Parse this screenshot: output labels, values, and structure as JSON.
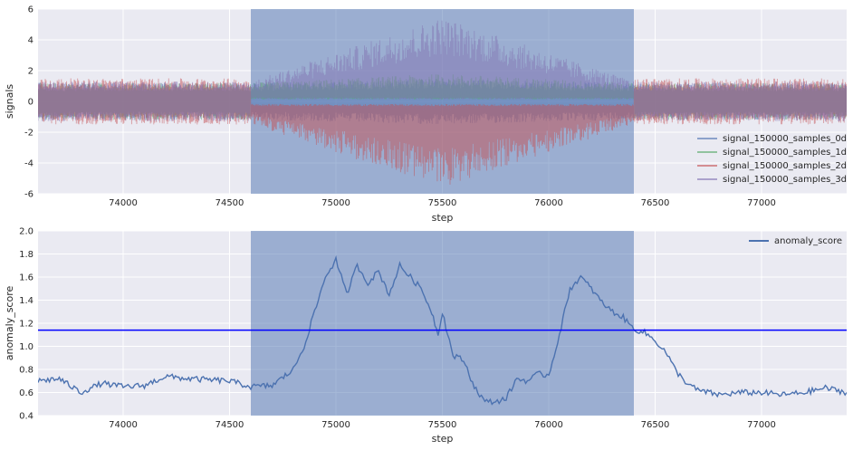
{
  "chart_data": [
    {
      "type": "line",
      "xlabel": "step",
      "ylabel": "signals",
      "xlim": [
        73600,
        77400
      ],
      "ylim": [
        -6,
        6
      ],
      "xticks": [
        74000,
        74500,
        75000,
        75500,
        76000,
        76500,
        77000
      ],
      "yticks": [
        -6,
        -4,
        -2,
        0,
        2,
        4,
        6
      ],
      "grid": true,
      "legend_position": "lower-right",
      "highlight_span": {
        "x": [
          74600,
          76400
        ],
        "color": "#4c72b0"
      },
      "series": [
        {
          "name": "signal_150000_samples_0d",
          "color": "#4c72b0",
          "base_amplitude": 1.2,
          "peak_amplitude": 1.5,
          "polarity": "both"
        },
        {
          "name": "signal_150000_samples_1d",
          "color": "#55a868",
          "base_amplitude": 1.2,
          "peak_amplitude": 1.8,
          "polarity": "positive"
        },
        {
          "name": "signal_150000_samples_2d",
          "color": "#c44e52",
          "base_amplitude": 1.5,
          "peak_amplitude": 5.6,
          "polarity": "negative"
        },
        {
          "name": "signal_150000_samples_3d",
          "color": "#8172b2",
          "base_amplitude": 1.3,
          "peak_amplitude": 5.5,
          "polarity": "positive"
        }
      ]
    },
    {
      "type": "line",
      "xlabel": "step",
      "ylabel": "anomaly_score",
      "xlim": [
        73600,
        77400
      ],
      "ylim": [
        0.4,
        2.0
      ],
      "xticks": [
        74000,
        74500,
        75000,
        75500,
        76000,
        76500,
        77000
      ],
      "yticks": [
        0.4,
        0.6,
        0.8,
        1.0,
        1.2,
        1.4,
        1.6,
        1.8,
        2.0
      ],
      "grid": true,
      "legend_position": "upper-right",
      "highlight_span": {
        "x": [
          74600,
          76400
        ],
        "color": "#4c72b0"
      },
      "threshold": {
        "y": 1.14,
        "color": "#0000ff"
      },
      "series": [
        {
          "name": "anomaly_score",
          "color": "#4c72b0",
          "x": [
            73600,
            73700,
            73800,
            73900,
            74000,
            74100,
            74200,
            74300,
            74400,
            74500,
            74600,
            74700,
            74800,
            74850,
            74900,
            74950,
            75000,
            75050,
            75100,
            75150,
            75200,
            75250,
            75300,
            75350,
            75400,
            75450,
            75480,
            75500,
            75550,
            75600,
            75650,
            75700,
            75750,
            75800,
            75850,
            75900,
            75950,
            76000,
            76050,
            76100,
            76150,
            76200,
            76250,
            76300,
            76350,
            76400,
            76450,
            76500,
            76550,
            76600,
            76650,
            76700,
            76800,
            76900,
            77000,
            77100,
            77200,
            77300,
            77400
          ],
          "y": [
            0.7,
            0.72,
            0.6,
            0.68,
            0.65,
            0.66,
            0.74,
            0.72,
            0.71,
            0.7,
            0.65,
            0.66,
            0.8,
            1.0,
            1.3,
            1.6,
            1.75,
            1.45,
            1.7,
            1.55,
            1.65,
            1.45,
            1.7,
            1.6,
            1.5,
            1.3,
            1.1,
            1.3,
            0.92,
            0.88,
            0.65,
            0.52,
            0.52,
            0.55,
            0.72,
            0.7,
            0.76,
            0.75,
            1.1,
            1.5,
            1.6,
            1.5,
            1.38,
            1.3,
            1.25,
            1.15,
            1.12,
            1.05,
            0.95,
            0.78,
            0.68,
            0.62,
            0.58,
            0.6,
            0.6,
            0.58,
            0.6,
            0.64,
            0.6
          ]
        }
      ]
    }
  ]
}
